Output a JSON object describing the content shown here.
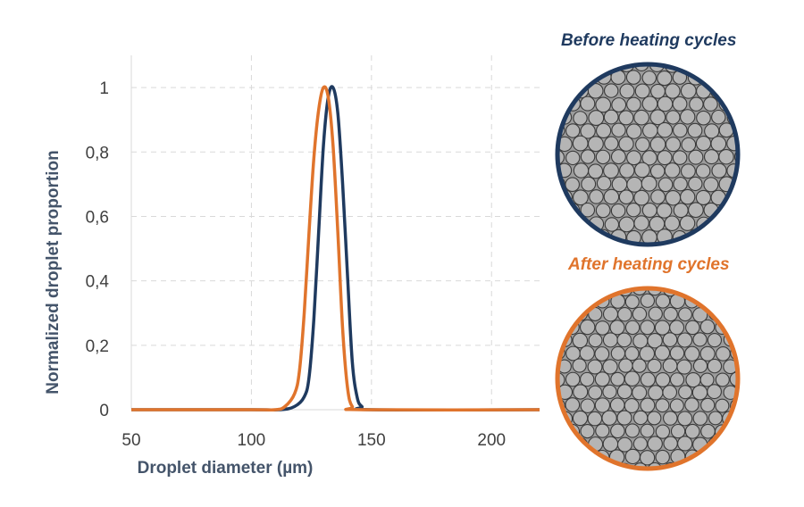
{
  "chart_data": {
    "type": "line",
    "xlabel": "Droplet diameter (µm)",
    "ylabel": "Normalized droplet proportion",
    "xlim": [
      50,
      220
    ],
    "ylim": [
      0,
      1.1
    ],
    "xticks": [
      50,
      100,
      150,
      200
    ],
    "yticks": [
      0,
      0.2,
      0.4,
      0.6,
      0.8,
      1
    ],
    "ytick_labels": [
      "0",
      "0,2",
      "0,4",
      "0,6",
      "0,8",
      "1"
    ],
    "grid": true,
    "series": [
      {
        "name": "Before heating cycles",
        "color": "#1f3a5f",
        "x": [
          50,
          100,
          112,
          118,
          122,
          124,
          126,
          128,
          130,
          132,
          134,
          136,
          138,
          140,
          142,
          144,
          146,
          150,
          220
        ],
        "y": [
          0,
          0,
          0,
          0.01,
          0.04,
          0.1,
          0.28,
          0.55,
          0.82,
          0.97,
          1.0,
          0.92,
          0.7,
          0.42,
          0.15,
          0.04,
          0.01,
          0,
          0
        ]
      },
      {
        "name": "After heating cycles",
        "color": "#e0742c",
        "x": [
          50,
          100,
          110,
          114,
          118,
          120,
          122,
          124,
          126,
          128,
          130,
          132,
          134,
          136,
          138,
          140,
          142,
          146,
          220
        ],
        "y": [
          0,
          0,
          0,
          0.01,
          0.05,
          0.12,
          0.3,
          0.55,
          0.78,
          0.93,
          1.0,
          0.97,
          0.82,
          0.55,
          0.25,
          0.07,
          0.01,
          0,
          0
        ]
      }
    ]
  },
  "panels": {
    "before_label": "Before heating cycles",
    "after_label": "After heating cycles",
    "before_color": "#1f3a5f",
    "after_color": "#e0742c"
  }
}
